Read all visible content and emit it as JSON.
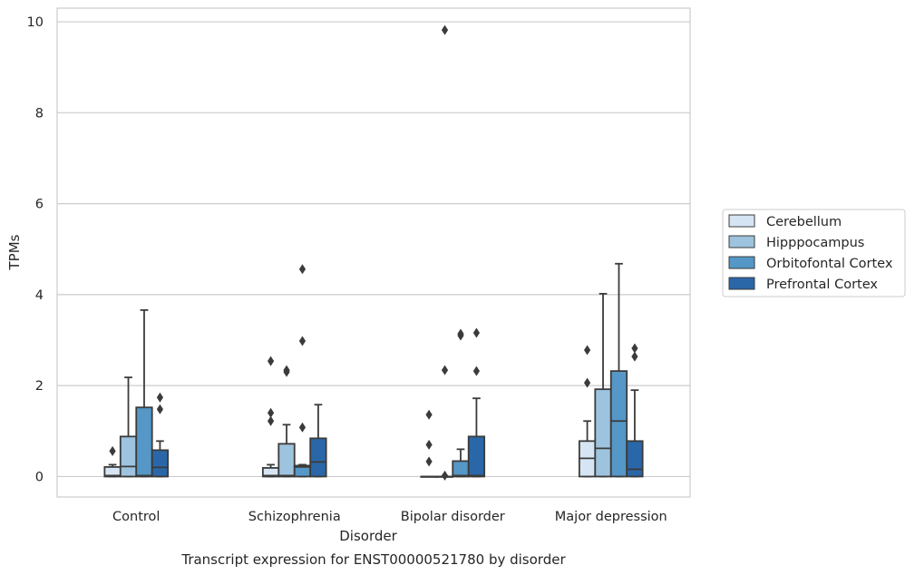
{
  "chart_data": {
    "type": "box",
    "title": "",
    "caption": "Transcript expression for ENST00000521780 by disorder",
    "xlabel": "Disorder",
    "ylabel": "TPMs",
    "ylim": [
      -0.45,
      10.3
    ],
    "yticks": [
      0,
      2,
      4,
      6,
      8,
      10
    ],
    "grid": true,
    "legend_position": "right",
    "categories": [
      "Control",
      "Schizophrenia",
      "Bipolar disorder",
      "Major depression"
    ],
    "series": [
      {
        "name": "Cerebellum",
        "color": "#d6e5f4",
        "boxes": [
          {
            "min": 0,
            "q1": 0,
            "median": 0.02,
            "q3": 0.21,
            "max": 0.26,
            "outliers": [
              0.56
            ]
          },
          {
            "min": 0,
            "q1": 0,
            "median": 0.02,
            "q3": 0.19,
            "max": 0.26,
            "outliers": [
              1.22,
              1.4,
              2.54
            ]
          },
          {
            "min": 0,
            "q1": 0,
            "median": 0,
            "q3": 0,
            "max": 0,
            "outliers": [
              0.33,
              0.7,
              1.36
            ]
          },
          {
            "min": 0,
            "q1": 0,
            "median": 0.4,
            "q3": 0.78,
            "max": 1.22,
            "outliers": [
              2.06,
              2.78
            ]
          }
        ]
      },
      {
        "name": "Hipppocampus",
        "color": "#9dc3de",
        "boxes": [
          {
            "min": 0,
            "q1": 0,
            "median": 0.22,
            "q3": 0.88,
            "max": 2.18,
            "outliers": []
          },
          {
            "min": 0,
            "q1": 0,
            "median": 0.02,
            "q3": 0.72,
            "max": 1.14,
            "outliers": [
              2.3,
              2.34
            ]
          },
          {
            "min": 0,
            "q1": 0,
            "median": 0,
            "q3": 0,
            "max": 0,
            "outliers": [
              0.02,
              2.34,
              9.82
            ]
          },
          {
            "min": 0,
            "q1": 0,
            "median": 0.62,
            "q3": 1.92,
            "max": 4.02,
            "outliers": []
          }
        ]
      },
      {
        "name": "Orbitofontal Cortex",
        "color": "#5597c6",
        "boxes": [
          {
            "min": 0,
            "q1": 0,
            "median": 0.02,
            "q3": 1.52,
            "max": 3.66,
            "outliers": []
          },
          {
            "min": 0,
            "q1": 0,
            "median": 0.21,
            "q3": 0.24,
            "max": 0.26,
            "outliers": [
              1.08,
              2.98,
              4.56
            ]
          },
          {
            "min": 0,
            "q1": 0,
            "median": 0.02,
            "q3": 0.34,
            "max": 0.6,
            "outliers": [
              3.1,
              3.14
            ]
          },
          {
            "min": 0,
            "q1": 0,
            "median": 1.22,
            "q3": 2.32,
            "max": 4.68,
            "outliers": []
          }
        ]
      },
      {
        "name": "Prefrontal Cortex",
        "color": "#2a67a8",
        "boxes": [
          {
            "min": 0,
            "q1": 0,
            "median": 0.2,
            "q3": 0.58,
            "max": 0.78,
            "outliers": [
              1.48,
              1.74
            ]
          },
          {
            "min": 0,
            "q1": 0,
            "median": 0.32,
            "q3": 0.84,
            "max": 1.58,
            "outliers": []
          },
          {
            "min": 0,
            "q1": 0,
            "median": 0.02,
            "q3": 0.88,
            "max": 1.72,
            "outliers": [
              2.32,
              3.16
            ]
          },
          {
            "min": 0,
            "q1": 0,
            "median": 0.16,
            "q3": 0.78,
            "max": 1.9,
            "outliers": [
              2.64,
              2.82
            ]
          }
        ]
      }
    ]
  }
}
